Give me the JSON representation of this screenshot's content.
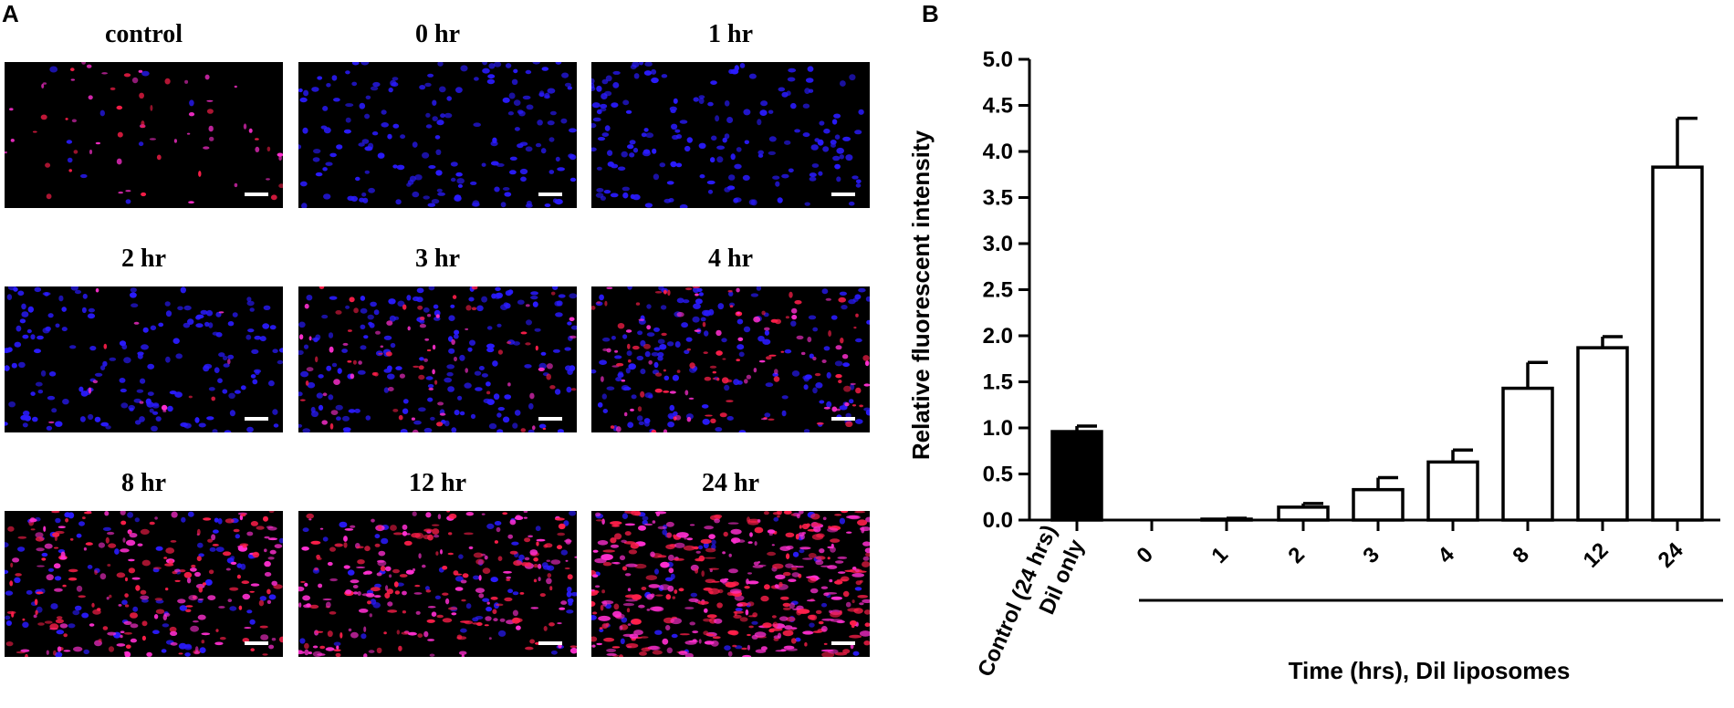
{
  "panels": {
    "a_label": "A",
    "b_label": "B"
  },
  "micrographs": [
    {
      "title": "control",
      "red": 0.15,
      "blue": 0.05
    },
    {
      "title": "0 hr",
      "red": 0.0,
      "blue": 1.0
    },
    {
      "title": "1 hr",
      "red": 0.0,
      "blue": 1.0
    },
    {
      "title": "2 hr",
      "red": 0.03,
      "blue": 1.0
    },
    {
      "title": "3 hr",
      "red": 0.2,
      "blue": 1.0
    },
    {
      "title": "4 hr",
      "red": 0.3,
      "blue": 0.9
    },
    {
      "title": "8 hr",
      "red": 0.55,
      "blue": 0.5
    },
    {
      "title": "12 hr",
      "red": 0.6,
      "blue": 0.35
    },
    {
      "title": "24 hr",
      "red": 1.0,
      "blue": 0.3
    }
  ],
  "colors": {
    "nuclei": "#2a1bff",
    "dil": "#ff1f4a",
    "dil_pink": "#ff2fd0",
    "control_bar": "#000000",
    "liposome_bar": "#ffffff"
  },
  "chart_data": {
    "type": "bar",
    "categories": [
      "Control (24 hrs)\nDil only",
      "0",
      "1",
      "2",
      "3",
      "4",
      "8",
      "12",
      "24"
    ],
    "category_labels": [
      "Control (24 hrs)",
      "Dil only"
    ],
    "values": [
      0.96,
      0.0,
      0.01,
      0.14,
      0.33,
      0.63,
      1.43,
      1.87,
      3.83
    ],
    "errors": [
      0.06,
      0.0,
      0.01,
      0.04,
      0.13,
      0.13,
      0.28,
      0.12,
      0.53
    ],
    "fill": [
      "filled",
      "open",
      "open",
      "open",
      "open",
      "open",
      "open",
      "open",
      "open"
    ],
    "ylabel": "Relative fluorescent intensity",
    "xlabel": "Time (hrs), Dil liposomes",
    "ylim": [
      0,
      5
    ],
    "yticks": [
      "0.0",
      "0.5",
      "1.0",
      "1.5",
      "2.0",
      "2.5",
      "3.0",
      "3.5",
      "4.0",
      "4.5",
      "5.0"
    ],
    "grid": false
  }
}
